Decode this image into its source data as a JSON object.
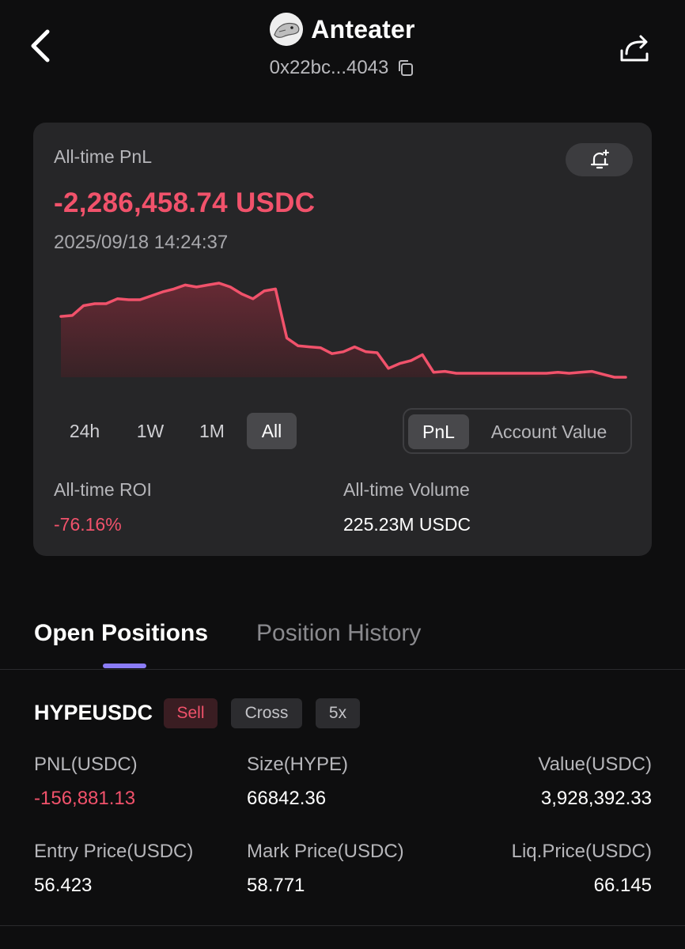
{
  "header": {
    "title": "Anteater",
    "address": "0x22bc...4043"
  },
  "card": {
    "pnl_label": "All-time PnL",
    "pnl_value": "-2,286,458.74 USDC",
    "timestamp": "2025/09/18 14:24:37",
    "ranges": [
      "24h",
      "1W",
      "1M",
      "All"
    ],
    "active_range": "All",
    "toggle": [
      "PnL",
      "Account Value"
    ],
    "active_toggle": "PnL",
    "roi_label": "All-time ROI",
    "roi_value": "-76.16%",
    "volume_label": "All-time Volume",
    "volume_value": "225.23M USDC"
  },
  "chart_data": {
    "type": "area",
    "color": "#f1526b",
    "title": "",
    "xlabel": "",
    "ylabel": "",
    "grid": false,
    "values": [
      0.62,
      0.63,
      0.73,
      0.75,
      0.75,
      0.8,
      0.79,
      0.79,
      0.83,
      0.87,
      0.9,
      0.94,
      0.92,
      0.94,
      0.96,
      0.92,
      0.85,
      0.8,
      0.88,
      0.9,
      0.4,
      0.32,
      0.31,
      0.3,
      0.24,
      0.26,
      0.31,
      0.26,
      0.25,
      0.09,
      0.14,
      0.17,
      0.23,
      0.05,
      0.06,
      0.04,
      0.04,
      0.04,
      0.04,
      0.04,
      0.04,
      0.04,
      0.04,
      0.04,
      0.05,
      0.04,
      0.05,
      0.06,
      0.03,
      0.0,
      0.0
    ]
  },
  "tabs": {
    "items": [
      "Open Positions",
      "Position History"
    ],
    "active": "Open Positions"
  },
  "position": {
    "symbol": "HYPEUSDC",
    "side": "Sell",
    "margin": "Cross",
    "leverage": "5x",
    "pnl_label": "PNL(USDC)",
    "pnl_value": "-156,881.13",
    "size_label": "Size(HYPE)",
    "size_value": "66842.36",
    "value_label": "Value(USDC)",
    "value_value": "3,928,392.33",
    "entry_label": "Entry Price(USDC)",
    "entry_value": "56.423",
    "mark_label": "Mark Price(USDC)",
    "mark_value": "58.771",
    "liq_label": "Liq.Price(USDC)",
    "liq_value": "66.145"
  }
}
